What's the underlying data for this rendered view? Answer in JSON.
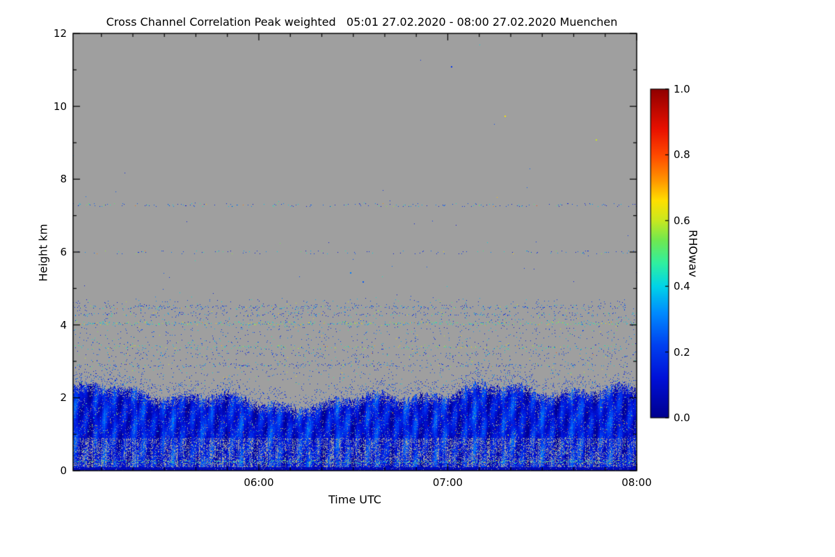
{
  "title": "Cross Channel Correlation Peak weighted   05:01 27.02.2020 - 08:00 27.02.2020 Muenchen",
  "chart_data": {
    "type": "heatmap",
    "title": "Cross Channel Correlation Peak weighted",
    "subtitle": "05:01 27.02.2020 - 08:00 27.02.2020 Muenchen",
    "station": "Muenchen",
    "time_start": "05:01 27.02.2020",
    "time_end": "08:00 27.02.2020",
    "x_axis": {
      "label": "Time UTC",
      "start": "05:01",
      "end": "08:00",
      "total_minutes": 179,
      "tick_labels": [
        "06:00",
        "07:00",
        "08:00"
      ],
      "tick_minutes": [
        59,
        119,
        179
      ]
    },
    "y_axis": {
      "label": "Height km",
      "min": 0,
      "max": 12,
      "ticks": [
        0,
        2,
        4,
        6,
        8,
        10,
        12
      ]
    },
    "colorbar": {
      "label": "RHOwav",
      "min": 0.0,
      "max": 1.0,
      "ticks": [
        0.0,
        0.2,
        0.4,
        0.6,
        0.8,
        1.0
      ]
    },
    "background_color": "#9f9f9f",
    "colormap_stops": [
      [
        0.0,
        "#00008f"
      ],
      [
        0.12,
        "#0010d8"
      ],
      [
        0.22,
        "#0040f0"
      ],
      [
        0.32,
        "#008cff"
      ],
      [
        0.4,
        "#00d4e8"
      ],
      [
        0.47,
        "#30f0a0"
      ],
      [
        0.54,
        "#70e850"
      ],
      [
        0.6,
        "#c8e820"
      ],
      [
        0.66,
        "#ffe000"
      ],
      [
        0.72,
        "#ff9800"
      ],
      [
        0.8,
        "#ff4800"
      ],
      [
        0.88,
        "#e81000"
      ],
      [
        1.0,
        "#900000"
      ]
    ],
    "features": {
      "background_note": "uniform gray = no data / below threshold",
      "boundary_layer": {
        "h_min_km": 0.0,
        "top_km_base": 2.05,
        "top_km_variation": 0.45,
        "value_range": [
          0.05,
          0.3
        ],
        "speckle_fraction": 0.016,
        "description": "continuous blue layer 0-2.2 km with vertical streak texture, ragged gray gaps below 0.9 km, rare cyan/yellow speckles, dark navy surface strip"
      },
      "speckle_lines": [
        {
          "h_km": 0.25,
          "density": 0.75,
          "bright": true
        },
        {
          "h_km": 0.55,
          "density": 0.3,
          "bright": false
        },
        {
          "h_km": 2.9,
          "density": 0.28,
          "bright": false
        },
        {
          "h_km": 3.2,
          "density": 0.14,
          "bright": false
        },
        {
          "h_km": 3.4,
          "density": 0.28,
          "bright": true
        },
        {
          "h_km": 4.05,
          "density": 0.5,
          "bright": true
        },
        {
          "h_km": 4.3,
          "density": 0.22,
          "bright": false
        },
        {
          "h_km": 4.5,
          "density": 0.4,
          "bright": false
        },
        {
          "h_km": 6.0,
          "density": 0.14,
          "bright": false
        },
        {
          "h_km": 7.3,
          "density": 0.2,
          "bright": false
        }
      ],
      "scatter_dust": {
        "h_min_km": 2.2,
        "h_max_km": 4.7,
        "density": 0.02
      },
      "upper_dust": {
        "h_min_km": 4.7,
        "count": 60
      },
      "isolated_points": [
        {
          "minutes": 120,
          "h_km": 11.1,
          "value": 0.2
        },
        {
          "minutes": 137,
          "h_km": 9.75,
          "value": 0.65
        },
        {
          "minutes": 166,
          "h_km": 9.1,
          "value": 0.6
        },
        {
          "minutes": 88,
          "h_km": 5.45,
          "value": 0.3
        },
        {
          "minutes": 92,
          "h_km": 5.2,
          "value": 0.25
        }
      ]
    }
  }
}
